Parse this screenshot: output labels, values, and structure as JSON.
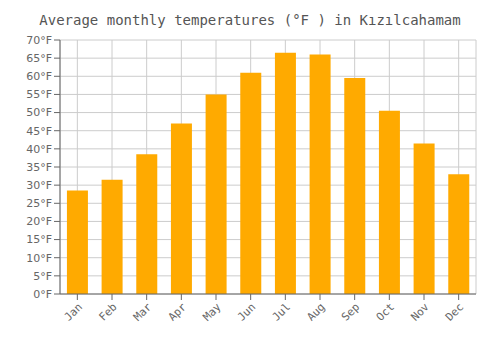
{
  "chart_data": {
    "type": "bar",
    "title": "Average monthly temperatures (°F ) in Kızılcahamam",
    "categories": [
      "Jan",
      "Feb",
      "Mar",
      "Apr",
      "May",
      "Jun",
      "Jul",
      "Aug",
      "Sep",
      "Oct",
      "Nov",
      "Dec"
    ],
    "values": [
      28.5,
      31.5,
      38.5,
      47.0,
      55.0,
      61.0,
      66.5,
      66.0,
      59.5,
      50.5,
      41.5,
      33.0
    ],
    "color": "#FFAA00",
    "ylim": [
      0,
      70
    ],
    "yticks": [
      {
        "value": 0,
        "label": "0°F"
      },
      {
        "value": 5,
        "label": "5°F"
      },
      {
        "value": 10,
        "label": "10°F"
      },
      {
        "value": 15,
        "label": "15°F"
      },
      {
        "value": 20,
        "label": "20°F"
      },
      {
        "value": 25,
        "label": "25°F"
      },
      {
        "value": 30,
        "label": "30°F"
      },
      {
        "value": 35,
        "label": "35°F"
      },
      {
        "value": 40,
        "label": "40°F"
      },
      {
        "value": 45,
        "label": "45°F"
      },
      {
        "value": 50,
        "label": "50°F"
      },
      {
        "value": 55,
        "label": "55°F"
      },
      {
        "value": 60,
        "label": "60°F"
      },
      {
        "value": 65,
        "label": "65°F"
      },
      {
        "value": 70,
        "label": "70°F"
      }
    ],
    "grid": true
  }
}
